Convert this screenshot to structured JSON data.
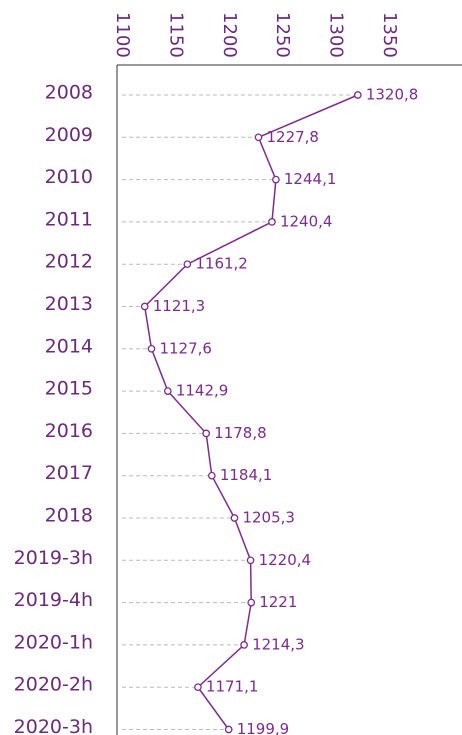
{
  "chart_data": {
    "type": "line",
    "orientation": "horizontal",
    "categories": [
      "2008",
      "2009",
      "2010",
      "2011",
      "2012",
      "2013",
      "2014",
      "2015",
      "2016",
      "2017",
      "2018",
      "2019-3h",
      "2019-4h",
      "2020-1h",
      "2020-2h",
      "2020-3h"
    ],
    "values": [
      1320.8,
      1227.8,
      1244.1,
      1240.4,
      1161.2,
      1121.3,
      1127.6,
      1142.9,
      1178.8,
      1184.1,
      1205.3,
      1220.4,
      1221,
      1214.3,
      1171.1,
      1199.9
    ],
    "value_labels": [
      "1320,8",
      "1227,8",
      "1244,1",
      "1240,4",
      "1161,2",
      "1121,3",
      "1127,6",
      "1142,9",
      "1178,8",
      "1184,1",
      "1205,3",
      "1220,4",
      "1221",
      "1214,3",
      "1171,1",
      "1199,9"
    ],
    "color": "#7b2d8e",
    "xlim": [
      1100,
      1350
    ],
    "xticks": [
      1100,
      1150,
      1200,
      1250,
      1300,
      1350
    ]
  }
}
